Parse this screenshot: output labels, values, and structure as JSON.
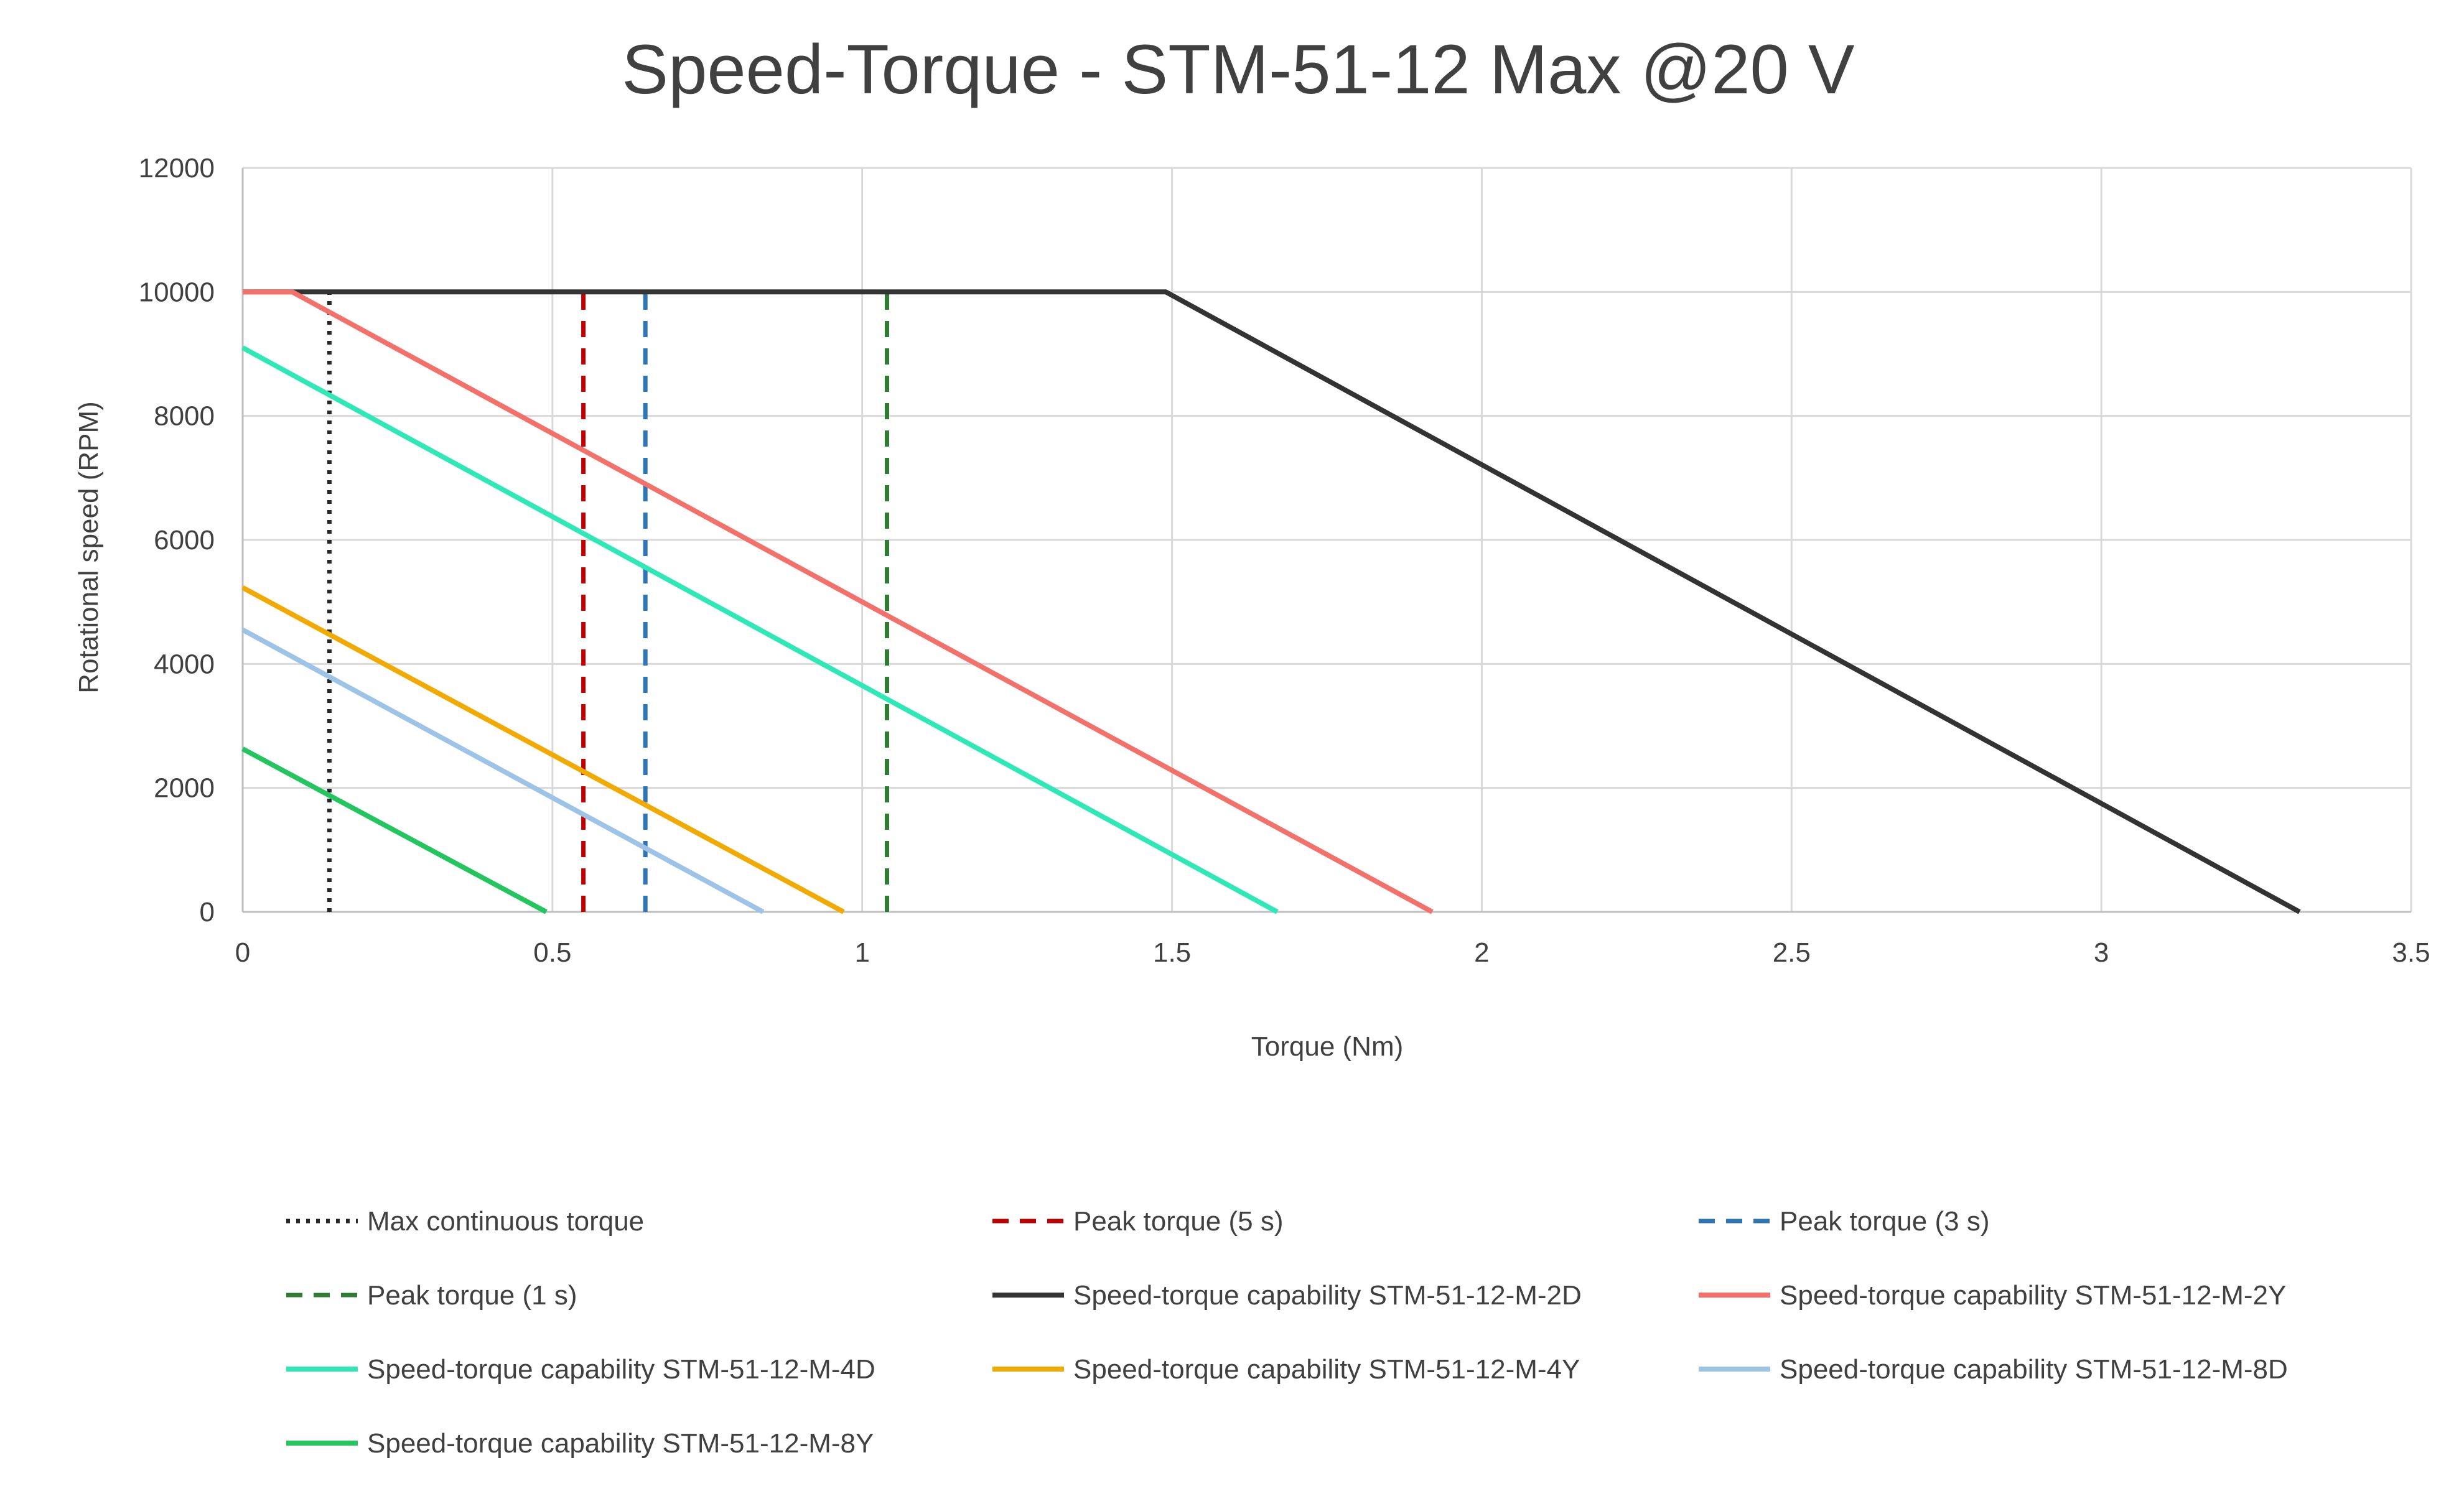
{
  "chart_data": {
    "type": "line",
    "title": "Speed-Torque - STM-51-12 Max  @20 V",
    "xlabel": "Torque (Nm)",
    "ylabel": "Rotational speed (RPM)",
    "xlim": [
      0,
      3.5
    ],
    "ylim": [
      0,
      12000
    ],
    "x_ticks": [
      "0",
      "0.5",
      "1",
      "1.5",
      "2",
      "2.5",
      "3",
      "3.5"
    ],
    "x_tick_values": [
      0,
      0.5,
      1,
      1.5,
      2,
      2.5,
      3,
      3.5
    ],
    "y_ticks": [
      "0",
      "2000",
      "4000",
      "6000",
      "8000",
      "10000",
      "12000"
    ],
    "y_tick_values": [
      0,
      2000,
      4000,
      6000,
      8000,
      10000,
      12000
    ],
    "grid": true,
    "legend_position": "bottom",
    "series": [
      {
        "name": "Max continuous torque",
        "color": "#262626",
        "dash": "dotted",
        "points": [
          [
            0.14,
            0
          ],
          [
            0.14,
            10000
          ]
        ]
      },
      {
        "name": "Peak torque (5 s)",
        "color": "#C00000",
        "dash": "dashed",
        "points": [
          [
            0.55,
            0
          ],
          [
            0.55,
            10000
          ]
        ]
      },
      {
        "name": "Peak torque (3 s)",
        "color": "#2E75B6",
        "dash": "dashed",
        "points": [
          [
            0.65,
            0
          ],
          [
            0.65,
            10000
          ]
        ]
      },
      {
        "name": "Peak torque (1 s)",
        "color": "#2E7D32",
        "dash": "dashed",
        "points": [
          [
            1.04,
            0
          ],
          [
            1.04,
            10000
          ]
        ]
      },
      {
        "name": "Speed-torque capability STM-51-12-M-2D",
        "color": "#333333",
        "dash": "solid",
        "points": [
          [
            0,
            10000
          ],
          [
            1.49,
            10000
          ],
          [
            3.32,
            0
          ]
        ]
      },
      {
        "name": "Speed-torque capability STM-51-12-M-2Y",
        "color": "#F4706A",
        "dash": "solid",
        "points": [
          [
            0,
            10000
          ],
          [
            0.08,
            10000
          ],
          [
            1.92,
            0
          ]
        ]
      },
      {
        "name": "Speed-torque capability STM-51-12-M-4D",
        "color": "#2EE8B6",
        "dash": "solid",
        "points": [
          [
            0,
            9100
          ],
          [
            1.67,
            0
          ]
        ]
      },
      {
        "name": "Speed-torque capability STM-51-12-M-4Y",
        "color": "#F2A900",
        "dash": "solid",
        "points": [
          [
            0,
            5230
          ],
          [
            0.97,
            0
          ]
        ]
      },
      {
        "name": "Speed-torque capability STM-51-12-M-8D",
        "color": "#9DC3E6",
        "dash": "solid",
        "points": [
          [
            0,
            4550
          ],
          [
            0.84,
            0
          ]
        ]
      },
      {
        "name": "Speed-torque capability STM-51-12-M-8Y",
        "color": "#22C55E",
        "dash": "solid",
        "points": [
          [
            0,
            2630
          ],
          [
            0.49,
            0
          ]
        ]
      }
    ]
  }
}
